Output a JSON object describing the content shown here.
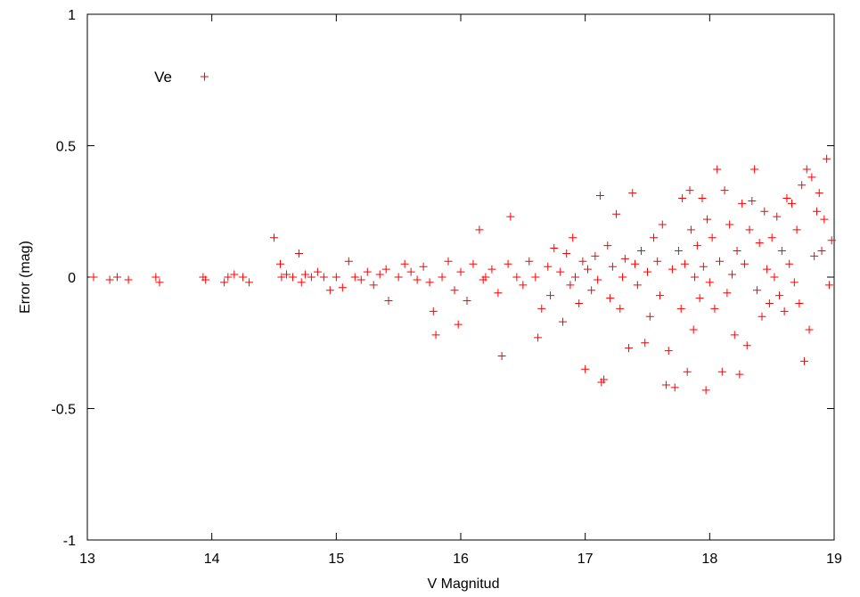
{
  "chart_data": {
    "type": "scatter",
    "xlabel": "V Magnitud",
    "ylabel": "Error (mag)",
    "xlim": [
      13,
      19
    ],
    "ylim": [
      -1,
      1
    ],
    "xticks": [
      "13",
      "14",
      "15",
      "16",
      "17",
      "18",
      "19"
    ],
    "yticks": [
      "1",
      "0.5",
      "0",
      "-0.5",
      "-1"
    ],
    "grid": false,
    "legend_position": "top-left",
    "series": [
      {
        "name": "Ve",
        "color": "#ff0000",
        "marker": "plus",
        "points": [
          [
            13.05,
            0.0
          ],
          [
            13.18,
            -0.01
          ],
          [
            13.24,
            0.0
          ],
          [
            13.33,
            -0.01
          ],
          [
            13.55,
            0.0
          ],
          [
            13.58,
            -0.02
          ],
          [
            13.93,
            0.0
          ],
          [
            13.95,
            -0.01
          ],
          [
            14.1,
            -0.02
          ],
          [
            14.13,
            0.0
          ],
          [
            14.18,
            0.01
          ],
          [
            14.25,
            0.0
          ],
          [
            14.3,
            -0.02
          ],
          [
            14.5,
            0.15
          ],
          [
            14.55,
            0.05
          ],
          [
            14.56,
            0.0
          ],
          [
            14.6,
            0.01
          ],
          [
            14.65,
            0.0
          ],
          [
            14.7,
            0.09
          ],
          [
            14.72,
            -0.02
          ],
          [
            14.75,
            0.01
          ],
          [
            14.8,
            0.0
          ],
          [
            14.85,
            0.02
          ],
          [
            14.9,
            0.0
          ],
          [
            14.95,
            -0.05
          ],
          [
            15.0,
            0.0
          ],
          [
            15.05,
            -0.04
          ],
          [
            15.1,
            0.06
          ],
          [
            15.15,
            0.0
          ],
          [
            15.2,
            -0.01
          ],
          [
            15.25,
            0.02
          ],
          [
            15.3,
            -0.03
          ],
          [
            15.35,
            0.01
          ],
          [
            15.4,
            0.03
          ],
          [
            15.42,
            -0.09
          ],
          [
            15.5,
            0.0
          ],
          [
            15.55,
            0.05
          ],
          [
            15.6,
            0.02
          ],
          [
            15.65,
            -0.01
          ],
          [
            15.7,
            0.04
          ],
          [
            15.75,
            -0.02
          ],
          [
            15.78,
            -0.13
          ],
          [
            15.8,
            -0.22
          ],
          [
            15.85,
            0.0
          ],
          [
            15.9,
            0.06
          ],
          [
            15.95,
            -0.05
          ],
          [
            15.98,
            -0.18
          ],
          [
            16.0,
            0.02
          ],
          [
            16.05,
            -0.09
          ],
          [
            16.1,
            0.05
          ],
          [
            16.15,
            0.18
          ],
          [
            16.18,
            -0.01
          ],
          [
            16.2,
            0.0
          ],
          [
            16.25,
            0.03
          ],
          [
            16.3,
            -0.06
          ],
          [
            16.33,
            -0.3
          ],
          [
            16.38,
            0.05
          ],
          [
            16.4,
            0.23
          ],
          [
            16.45,
            0.0
          ],
          [
            16.5,
            -0.03
          ],
          [
            16.55,
            0.06
          ],
          [
            16.6,
            0.0
          ],
          [
            16.62,
            -0.23
          ],
          [
            16.65,
            -0.12
          ],
          [
            16.7,
            0.04
          ],
          [
            16.72,
            -0.07
          ],
          [
            16.75,
            0.11
          ],
          [
            16.8,
            0.02
          ],
          [
            16.82,
            -0.17
          ],
          [
            16.85,
            0.09
          ],
          [
            16.88,
            -0.03
          ],
          [
            16.9,
            0.15
          ],
          [
            16.92,
            0.0
          ],
          [
            16.95,
            -0.1
          ],
          [
            16.98,
            0.06
          ],
          [
            17.0,
            -0.35
          ],
          [
            17.02,
            0.03
          ],
          [
            17.05,
            -0.05
          ],
          [
            17.08,
            0.08
          ],
          [
            17.1,
            -0.01
          ],
          [
            17.12,
            0.31
          ],
          [
            17.13,
            -0.4
          ],
          [
            17.15,
            -0.39
          ],
          [
            17.18,
            0.12
          ],
          [
            17.2,
            -0.08
          ],
          [
            17.22,
            0.04
          ],
          [
            17.25,
            0.24
          ],
          [
            17.28,
            -0.12
          ],
          [
            17.3,
            0.0
          ],
          [
            17.32,
            0.07
          ],
          [
            17.35,
            -0.27
          ],
          [
            17.38,
            0.32
          ],
          [
            17.4,
            0.05
          ],
          [
            17.42,
            -0.03
          ],
          [
            17.45,
            0.1
          ],
          [
            17.48,
            -0.25
          ],
          [
            17.5,
            0.02
          ],
          [
            17.52,
            -0.15
          ],
          [
            17.55,
            0.15
          ],
          [
            17.58,
            0.06
          ],
          [
            17.6,
            -0.07
          ],
          [
            17.62,
            0.2
          ],
          [
            17.65,
            -0.41
          ],
          [
            17.67,
            -0.28
          ],
          [
            17.7,
            0.03
          ],
          [
            17.72,
            -0.42
          ],
          [
            17.75,
            0.1
          ],
          [
            17.77,
            -0.12
          ],
          [
            17.78,
            0.3
          ],
          [
            17.8,
            0.05
          ],
          [
            17.82,
            -0.36
          ],
          [
            17.84,
            0.33
          ],
          [
            17.85,
            0.18
          ],
          [
            17.87,
            -0.2
          ],
          [
            17.88,
            0.0
          ],
          [
            17.9,
            0.12
          ],
          [
            17.92,
            -0.08
          ],
          [
            17.94,
            0.3
          ],
          [
            17.95,
            0.04
          ],
          [
            17.97,
            -0.43
          ],
          [
            17.98,
            0.22
          ],
          [
            18.0,
            -0.02
          ],
          [
            18.02,
            0.15
          ],
          [
            18.04,
            -0.12
          ],
          [
            18.06,
            0.41
          ],
          [
            18.08,
            0.06
          ],
          [
            18.1,
            -0.36
          ],
          [
            18.12,
            0.33
          ],
          [
            18.14,
            -0.06
          ],
          [
            18.16,
            0.2
          ],
          [
            18.18,
            0.01
          ],
          [
            18.2,
            -0.22
          ],
          [
            18.22,
            0.1
          ],
          [
            18.24,
            -0.37
          ],
          [
            18.26,
            0.28
          ],
          [
            18.28,
            0.05
          ],
          [
            18.3,
            -0.26
          ],
          [
            18.32,
            0.18
          ],
          [
            18.34,
            0.29
          ],
          [
            18.36,
            0.41
          ],
          [
            18.38,
            -0.05
          ],
          [
            18.4,
            0.13
          ],
          [
            18.42,
            -0.15
          ],
          [
            18.44,
            0.25
          ],
          [
            18.46,
            0.03
          ],
          [
            18.48,
            -0.1
          ],
          [
            18.5,
            0.15
          ],
          [
            18.52,
            0.0
          ],
          [
            18.54,
            0.23
          ],
          [
            18.56,
            -0.07
          ],
          [
            18.58,
            0.1
          ],
          [
            18.6,
            -0.13
          ],
          [
            18.62,
            0.3
          ],
          [
            18.64,
            0.05
          ],
          [
            18.66,
            0.28
          ],
          [
            18.68,
            -0.02
          ],
          [
            18.7,
            0.18
          ],
          [
            18.72,
            -0.1
          ],
          [
            18.74,
            0.35
          ],
          [
            18.76,
            -0.32
          ],
          [
            18.78,
            0.41
          ],
          [
            18.8,
            -0.2
          ],
          [
            18.82,
            0.38
          ],
          [
            18.84,
            0.08
          ],
          [
            18.86,
            0.25
          ],
          [
            18.88,
            0.32
          ],
          [
            18.9,
            0.1
          ],
          [
            18.92,
            0.22
          ],
          [
            18.94,
            0.45
          ],
          [
            18.96,
            -0.03
          ],
          [
            18.98,
            0.14
          ]
        ]
      }
    ]
  }
}
